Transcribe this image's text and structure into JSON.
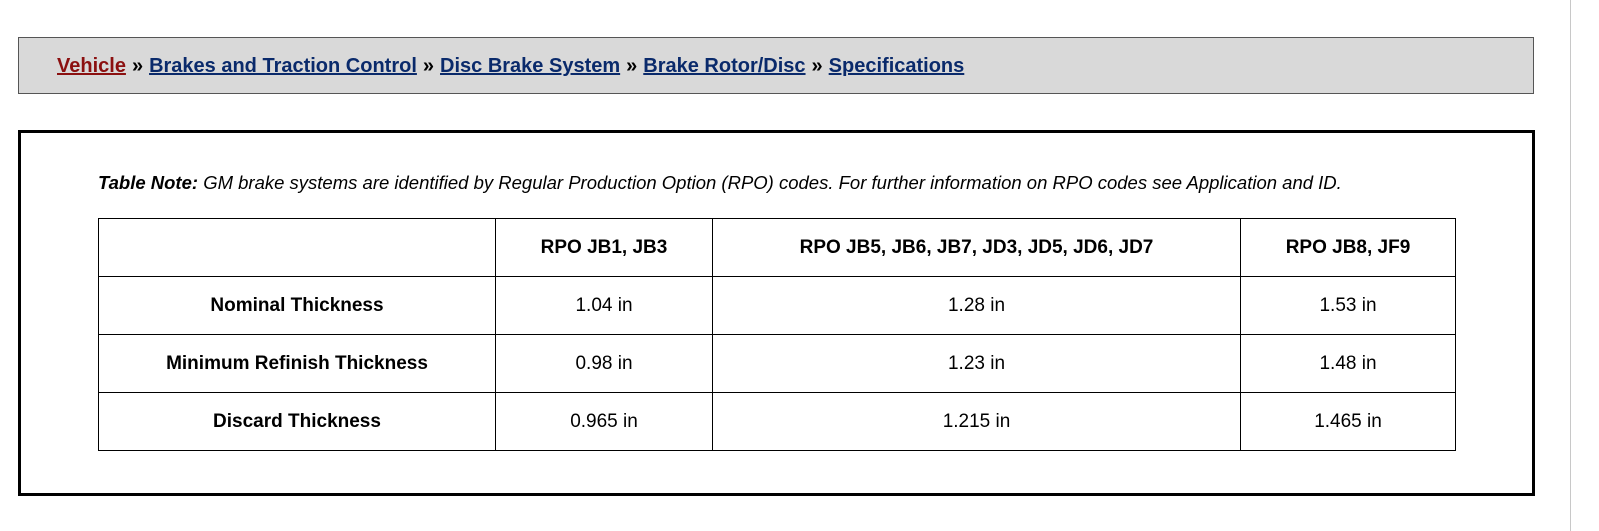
{
  "breadcrumb": {
    "items": [
      {
        "label": "Vehicle"
      },
      {
        "label": "Brakes and Traction Control"
      },
      {
        "label": "Disc Brake System"
      },
      {
        "label": "Brake Rotor/Disc"
      },
      {
        "label": "Specifications"
      }
    ],
    "separator": "»"
  },
  "table_note": {
    "label": "Table Note:",
    "text": "GM brake systems are identified by Regular Production Option (RPO) codes. For further information on RPO codes see Application and ID."
  },
  "spec_table": {
    "columns": [
      "",
      "RPO JB1, JB3",
      "RPO JB5, JB6, JB7, JD3, JD5, JD6, JD7",
      "RPO JB8, JF9"
    ],
    "rows": [
      {
        "label": "Nominal Thickness",
        "values": [
          "1.04 in",
          "1.28 in",
          "1.53 in"
        ]
      },
      {
        "label": "Minimum Refinish Thickness",
        "values": [
          "0.98 in",
          "1.23 in",
          "1.48 in"
        ]
      },
      {
        "label": "Discard Thickness",
        "values": [
          "0.965 in",
          "1.215 in",
          "1.465 in"
        ]
      }
    ]
  },
  "colors": {
    "link": "#0a2a6b",
    "link_root": "#8b1010",
    "breadcrumb_bg": "#d9d9d9"
  }
}
